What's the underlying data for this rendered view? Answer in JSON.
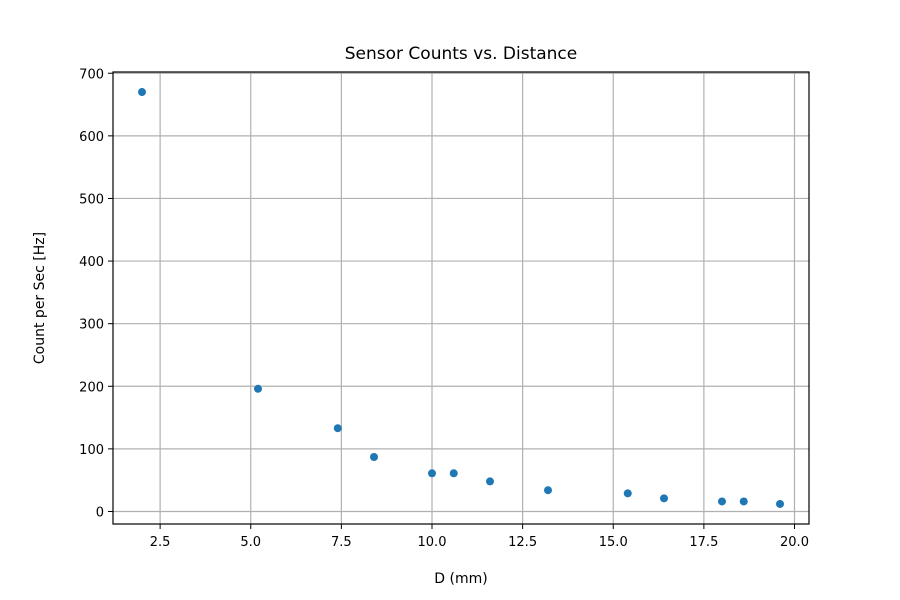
{
  "chart_data": {
    "type": "scatter",
    "title": "Sensor Counts vs. Distance",
    "xlabel": "D (mm)",
    "ylabel": "Count per Sec [Hz]",
    "xlim": [
      1.2,
      20.4
    ],
    "ylim": [
      -20,
      702
    ],
    "grid": true,
    "x_ticks": [
      2.5,
      5.0,
      7.5,
      10.0,
      12.5,
      15.0,
      17.5,
      20.0
    ],
    "x_tick_labels": [
      "2.5",
      "5.0",
      "7.5",
      "10.0",
      "12.5",
      "15.0",
      "17.5",
      "20.0"
    ],
    "y_ticks": [
      0,
      100,
      200,
      300,
      400,
      500,
      600,
      700
    ],
    "y_tick_labels": [
      "0",
      "100",
      "200",
      "300",
      "400",
      "500",
      "600",
      "700"
    ],
    "color": "#1f77b4",
    "series": [
      {
        "x": [
          2.0,
          5.2,
          7.4,
          8.4,
          10.0,
          10.6,
          11.6,
          13.2,
          15.4,
          16.4,
          18.0,
          18.6,
          19.6
        ],
        "y": [
          670,
          196,
          133,
          87,
          61,
          61,
          48,
          34,
          29,
          21,
          16,
          16,
          12
        ]
      }
    ]
  }
}
